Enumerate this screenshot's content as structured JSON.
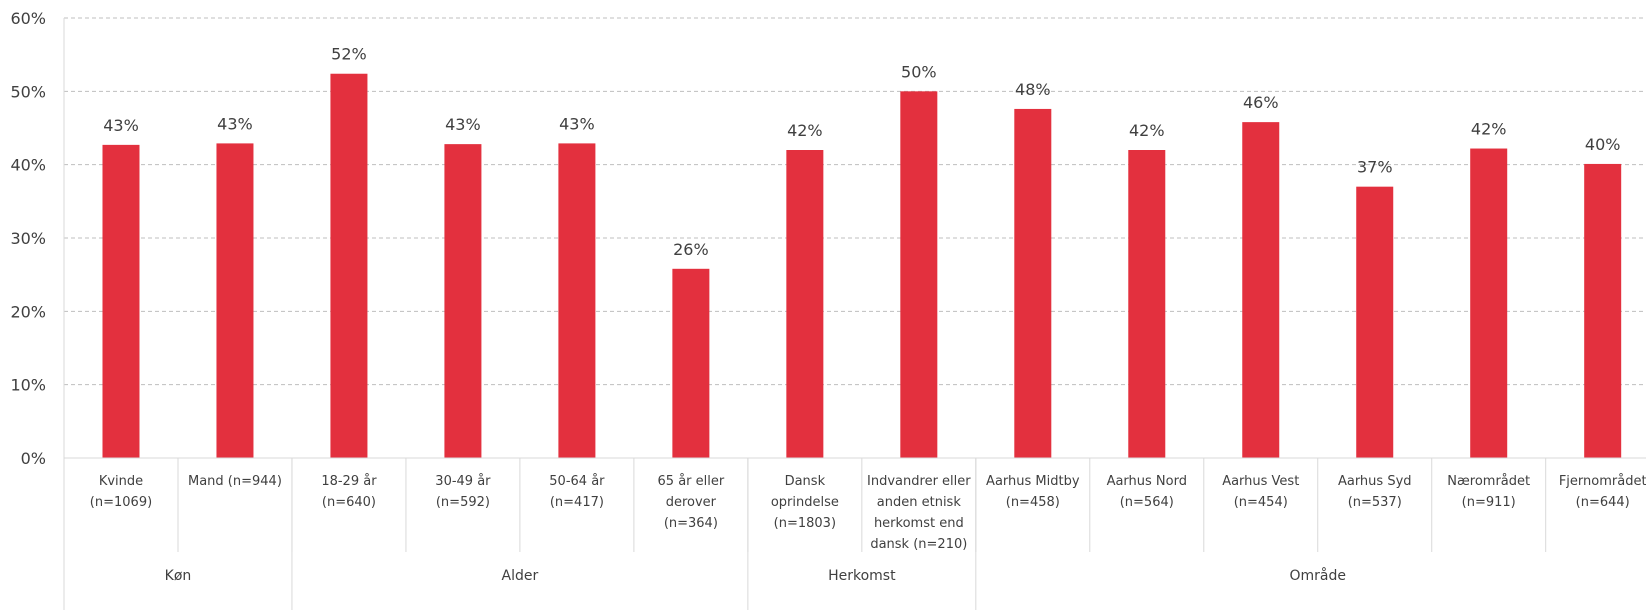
{
  "chart_data": {
    "type": "bar",
    "bar_color": "#E3303E",
    "ylim": [
      0,
      60
    ],
    "yticks": [
      "0%",
      "10%",
      "20%",
      "30%",
      "40%",
      "50%",
      "60%"
    ],
    "grid": "horizontal dashed",
    "categories": [
      [
        "Kvinde",
        "(n=1069)"
      ],
      [
        "Mand (n=944)"
      ],
      [
        "18-29 år",
        "(n=640)"
      ],
      [
        "30-49 år",
        "(n=592)"
      ],
      [
        "50-64 år",
        "(n=417)"
      ],
      [
        "65 år eller",
        "derover",
        "(n=364)"
      ],
      [
        "Dansk",
        "oprindelse",
        "(n=1803)"
      ],
      [
        "Indvandrer eller",
        "anden etnisk",
        "herkomst end",
        "dansk (n=210)"
      ],
      [
        "Aarhus Midtby",
        "(n=458)"
      ],
      [
        "Aarhus Nord",
        "(n=564)"
      ],
      [
        "Aarhus Vest",
        "(n=454)"
      ],
      [
        "Aarhus Syd",
        "(n=537)"
      ],
      [
        "Nærområdet",
        "(n=911)"
      ],
      [
        "Fjernområdet",
        "(n=644)"
      ]
    ],
    "values": [
      42.7,
      42.9,
      52.4,
      42.8,
      42.9,
      25.8,
      42.0,
      50.0,
      47.6,
      42.0,
      45.8,
      37.0,
      42.2,
      40.1
    ],
    "data_labels": [
      "43%",
      "43%",
      "52%",
      "43%",
      "43%",
      "26%",
      "42%",
      "50%",
      "48%",
      "42%",
      "46%",
      "37%",
      "42%",
      "40%"
    ],
    "groups": [
      {
        "label": "Køn",
        "count": 2
      },
      {
        "label": "Alder",
        "count": 4
      },
      {
        "label": "Herkomst",
        "count": 2
      },
      {
        "label": "Område",
        "count": 6
      }
    ]
  }
}
